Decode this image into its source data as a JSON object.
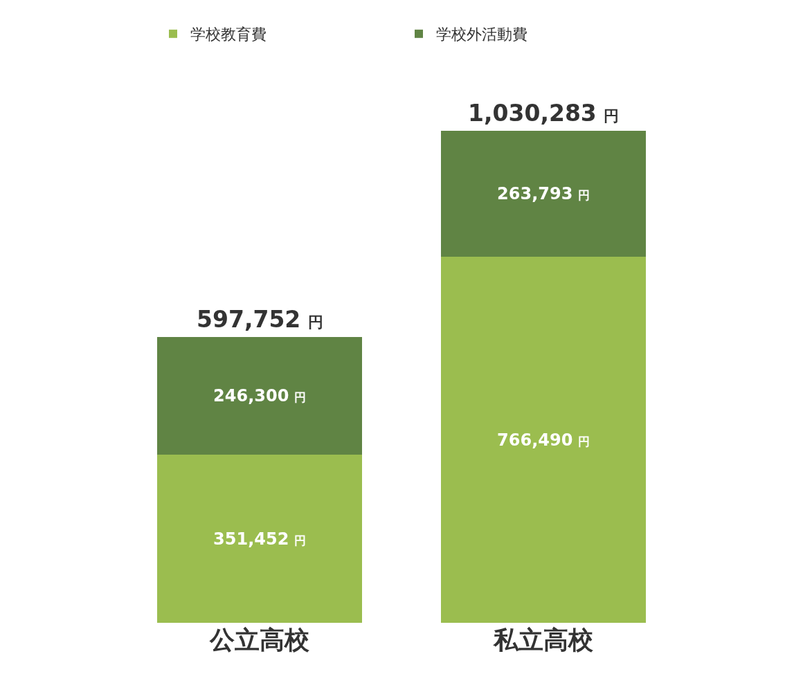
{
  "chart_data": {
    "type": "bar",
    "stacked": true,
    "categories": [
      "公立高校",
      "私立高校"
    ],
    "series": [
      {
        "name": "学校教育費",
        "color": "#9bbd4f",
        "values": [
          351452,
          766490
        ],
        "value_labels": [
          "351,452 円",
          "766,490 円"
        ]
      },
      {
        "name": "学校外活動費",
        "color": "#608444",
        "values": [
          246300,
          263793
        ],
        "value_labels": [
          "246,300 円",
          "263,793 円"
        ]
      }
    ],
    "totals": [
      "597,752 円",
      "1,030,283 円"
    ],
    "legend": "top"
  }
}
